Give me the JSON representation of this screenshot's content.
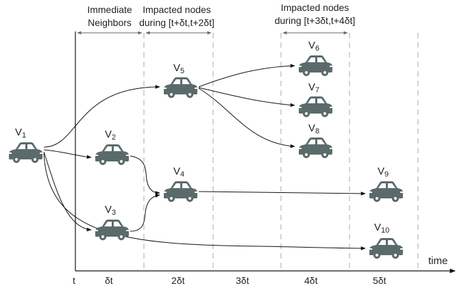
{
  "headers": {
    "immediate_line1": "Immediate",
    "immediate_line2": "Neighbors",
    "impacted_a_line1": "Impacted nodes",
    "impacted_a_line2": "during [t+δt,t+2δt]",
    "impacted_b_line1": "Impacted nodes",
    "impacted_b_line2": "during [t+3δt,t+4δt]"
  },
  "axis": {
    "time_label": "time",
    "ticks": [
      "t",
      "δt",
      "2δt",
      "3δt",
      "4δt",
      "5δt"
    ]
  },
  "nodes": [
    {
      "base": "V",
      "sub": "1"
    },
    {
      "base": "V",
      "sub": "2"
    },
    {
      "base": "V",
      "sub": "3"
    },
    {
      "base": "V",
      "sub": "4"
    },
    {
      "base": "V",
      "sub": "5"
    },
    {
      "base": "V",
      "sub": "6"
    },
    {
      "base": "V",
      "sub": "7"
    },
    {
      "base": "V",
      "sub": "8"
    },
    {
      "base": "V",
      "sub": "9"
    },
    {
      "base": "V",
      "sub": "10"
    }
  ],
  "edges": [
    [
      "1",
      "5"
    ],
    [
      "1",
      "2"
    ],
    [
      "1",
      "3"
    ],
    [
      "1",
      "10"
    ],
    [
      "2",
      "4"
    ],
    [
      "3",
      "4"
    ],
    [
      "4",
      "9"
    ],
    [
      "5",
      "6"
    ],
    [
      "5",
      "7"
    ],
    [
      "5",
      "8"
    ]
  ],
  "icons": {
    "vehicle": "car-icon"
  },
  "colors": {
    "car_body": "#5b6b6c",
    "car_window": "#ffffff",
    "line": "#111111",
    "divider": "#a8a8a8",
    "bracket": "#666666"
  }
}
